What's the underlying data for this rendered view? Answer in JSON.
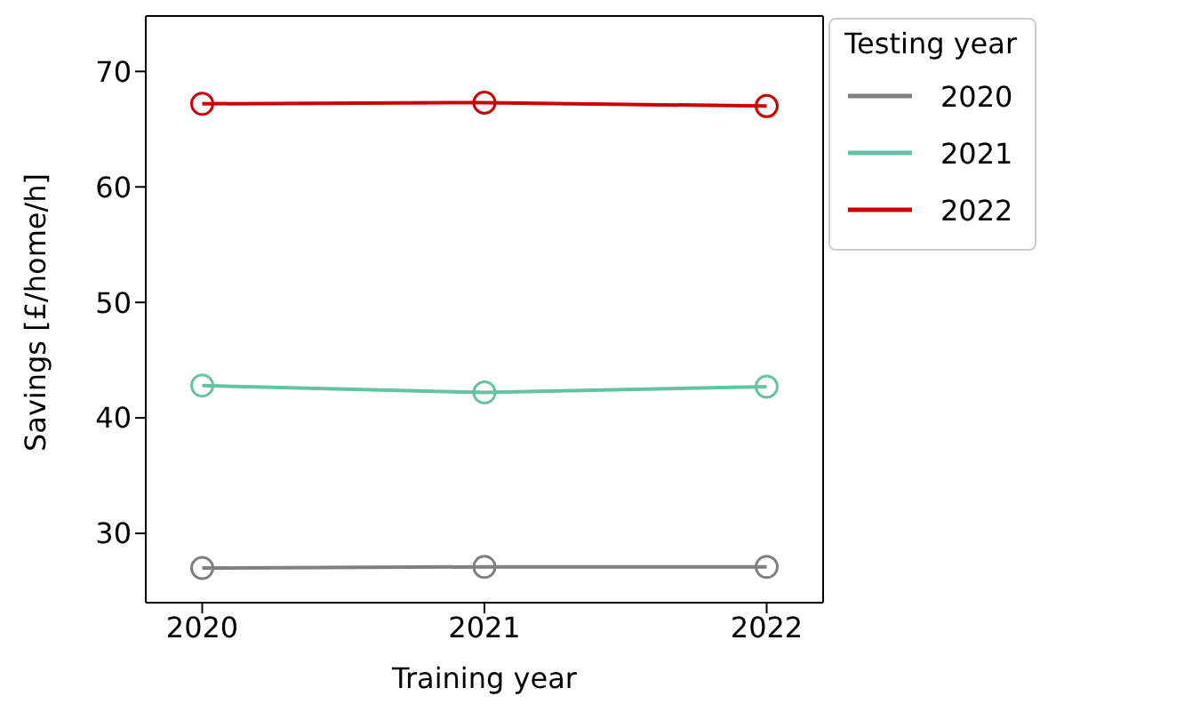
{
  "chart_data": {
    "type": "line",
    "xlabel": "Training year",
    "ylabel": "Savings [£/home/h]",
    "legend_title": "Testing year",
    "legend": "top right",
    "marker": "circle",
    "grid": false,
    "x": [
      2020,
      2021,
      2022
    ],
    "xlim": [
      2019.8,
      2022.2
    ],
    "xticks": [
      2020,
      2021,
      2022
    ],
    "ylim": [
      24,
      74.8
    ],
    "yticks": [
      30,
      40,
      50,
      60,
      70
    ],
    "series": [
      {
        "name": "2020",
        "color": "#808080",
        "values": [
          27.0,
          27.1,
          27.1
        ]
      },
      {
        "name": "2021",
        "color": "#66c2a5",
        "values": [
          42.8,
          42.2,
          42.7
        ]
      },
      {
        "name": "2022",
        "color": "#cc0000",
        "values": [
          67.2,
          67.3,
          67.0
        ]
      }
    ]
  }
}
